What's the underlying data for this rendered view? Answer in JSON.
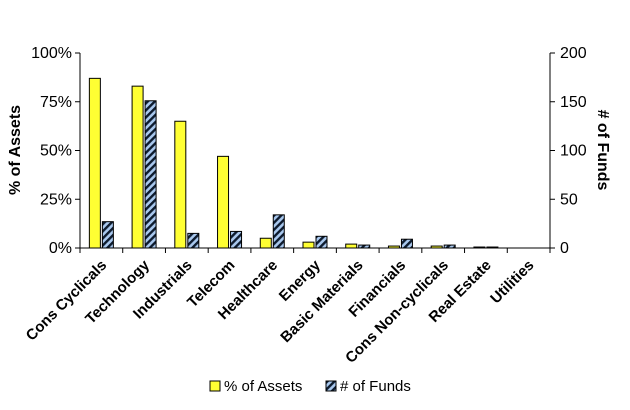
{
  "chart_data": {
    "type": "bar",
    "categories": [
      "Cons Cyclicals",
      "Technology",
      "Industrials",
      "Telecom",
      "Healthcare",
      "Energy",
      "Basic Materials",
      "Financials",
      "Cons Non-cyclicals",
      "Real Estate",
      "Utilities"
    ],
    "series": [
      {
        "name": "% of Assets",
        "axis": "left",
        "values": [
          87,
          83,
          65,
          47,
          5,
          3,
          2,
          1,
          1,
          0.5,
          0
        ],
        "color": "#ffff33"
      },
      {
        "name": "# of Funds",
        "axis": "right",
        "values": [
          27,
          151,
          15,
          17,
          34,
          12,
          3,
          9,
          3,
          1,
          0
        ],
        "color": "#a9c8ee",
        "pattern": "diagonal-hatch"
      }
    ],
    "y_left": {
      "label": "% of Assets",
      "lim": [
        0,
        100
      ],
      "ticks": [
        "0%",
        "25%",
        "50%",
        "75%",
        "100%"
      ]
    },
    "y_right": {
      "label": "# of Funds",
      "lim": [
        0,
        200
      ],
      "ticks": [
        "0",
        "50",
        "100",
        "150",
        "200"
      ]
    },
    "legend": {
      "position": "bottom"
    },
    "grid": false
  }
}
